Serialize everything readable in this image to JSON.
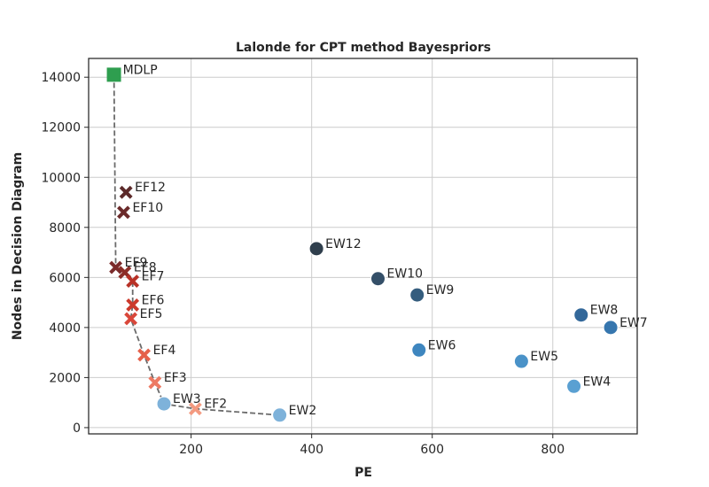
{
  "chart_data": {
    "type": "scatter",
    "title": "Lalonde for CPT method Bayespriors",
    "xlabel": "PE",
    "ylabel": "Nodes in Decision Diagram",
    "xlim": [
      30,
      940
    ],
    "ylim": [
      -250,
      14750
    ],
    "xticks": [
      200,
      400,
      600,
      800
    ],
    "yticks": [
      0,
      2000,
      4000,
      6000,
      8000,
      10000,
      12000,
      14000
    ],
    "grid": true,
    "points": [
      {
        "label": "MDLP",
        "x": 72,
        "y": 14100,
        "marker": "square",
        "color": "#2e9e4f"
      },
      {
        "label": "EF12",
        "x": 92,
        "y": 9400,
        "marker": "x",
        "color": "#5c2a2a"
      },
      {
        "label": "EF10",
        "x": 88,
        "y": 8600,
        "marker": "x",
        "color": "#6b2a2a"
      },
      {
        "label": "EF9",
        "x": 75,
        "y": 6400,
        "marker": "x",
        "color": "#7a2a2a"
      },
      {
        "label": "EF8",
        "x": 90,
        "y": 6200,
        "marker": "x",
        "color": "#8c2e28"
      },
      {
        "label": "EF7",
        "x": 103,
        "y": 5850,
        "marker": "x",
        "color": "#b83227"
      },
      {
        "label": "EF6",
        "x": 103,
        "y": 4900,
        "marker": "x",
        "color": "#cc3a2c"
      },
      {
        "label": "EF5",
        "x": 100,
        "y": 4350,
        "marker": "x",
        "color": "#d9473a"
      },
      {
        "label": "EF4",
        "x": 122,
        "y": 2900,
        "marker": "x",
        "color": "#e5604a"
      },
      {
        "label": "EF3",
        "x": 140,
        "y": 1800,
        "marker": "x",
        "color": "#ed7a63"
      },
      {
        "label": "EF2",
        "x": 207,
        "y": 750,
        "marker": "x",
        "color": "#f39a80"
      },
      {
        "label": "EW3",
        "x": 155,
        "y": 950,
        "marker": "circle",
        "color": "#7eb2da"
      },
      {
        "label": "EW2",
        "x": 347,
        "y": 500,
        "marker": "circle",
        "color": "#7eb2da"
      },
      {
        "label": "EW12",
        "x": 408,
        "y": 7150,
        "marker": "circle",
        "color": "#2f3e4c"
      },
      {
        "label": "EW10",
        "x": 510,
        "y": 5950,
        "marker": "circle",
        "color": "#344f68"
      },
      {
        "label": "EW9",
        "x": 575,
        "y": 5300,
        "marker": "circle",
        "color": "#355d7e"
      },
      {
        "label": "EW6",
        "x": 578,
        "y": 3100,
        "marker": "circle",
        "color": "#3e86bf"
      },
      {
        "label": "EW5",
        "x": 748,
        "y": 2650,
        "marker": "circle",
        "color": "#4a92c8"
      },
      {
        "label": "EW4",
        "x": 835,
        "y": 1650,
        "marker": "circle",
        "color": "#5aa0d2"
      },
      {
        "label": "EW8",
        "x": 847,
        "y": 4500,
        "marker": "circle",
        "color": "#33689a"
      },
      {
        "label": "EW7",
        "x": 896,
        "y": 4000,
        "marker": "circle",
        "color": "#3676ae"
      }
    ],
    "frontier": [
      {
        "x": 72,
        "y": 14100
      },
      {
        "x": 75,
        "y": 6400
      },
      {
        "x": 90,
        "y": 6200
      },
      {
        "x": 103,
        "y": 5850
      },
      {
        "x": 103,
        "y": 4900
      },
      {
        "x": 100,
        "y": 4350
      },
      {
        "x": 122,
        "y": 2900
      },
      {
        "x": 140,
        "y": 1800
      },
      {
        "x": 155,
        "y": 950
      },
      {
        "x": 207,
        "y": 750
      },
      {
        "x": 347,
        "y": 500
      }
    ]
  }
}
